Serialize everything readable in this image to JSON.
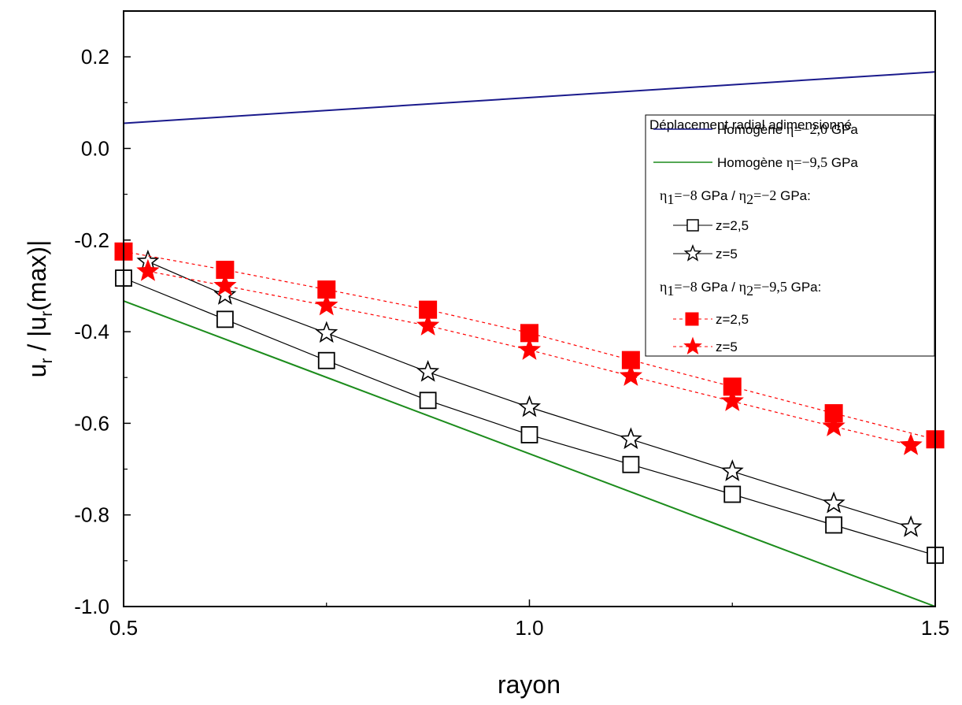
{
  "chart_data": {
    "type": "line",
    "xlabel": "rayon",
    "ylabel": {
      "base": "u",
      "sub": "r",
      "mid": " / |u",
      "sub2": "r",
      "tail": "(max)|"
    },
    "xlim": [
      0.5,
      1.5
    ],
    "ylim": [
      -1.0,
      0.3
    ],
    "xticks": [
      0.5,
      1.0,
      1.5
    ],
    "xtick_labels": [
      "0.5",
      "1.0",
      "1.5"
    ],
    "yticks": [
      0.2,
      0.0,
      -0.2,
      -0.4,
      -0.6,
      -0.8,
      -1.0
    ],
    "ytick_labels": [
      "0.2",
      "0.0",
      "-0.2",
      "-0.4",
      "-0.6",
      "-0.8",
      "-1.0"
    ],
    "grid": false,
    "legend": {
      "position": "right",
      "title": "Déplacement radial adimensionné",
      "group1_header": {
        "e1": "η",
        "s1": "1",
        "v1": "=−8",
        "u1": " GPa / ",
        "e2": "η",
        "s2": "2",
        "v2": "=−2",
        "u2": " GPa:"
      },
      "group2_header": {
        "e1": "η",
        "s1": "1",
        "v1": "=−8",
        "u1": " GPa / ",
        "e2": "η",
        "s2": "2",
        "v2": "=−9,5",
        "u2": " GPa:"
      }
    },
    "series": [
      {
        "name": "Homogène",
        "name_param": "η=−2,0",
        "name_unit": " GPa",
        "style": "line",
        "color": "#1a1a8c",
        "dash": "",
        "marker": "none",
        "x": [
          0.5,
          1.5
        ],
        "y": [
          0.055,
          0.167
        ]
      },
      {
        "name": "Homogène",
        "name_param": "η=−9,5",
        "name_unit": " GPa",
        "style": "line",
        "color": "#1c8c1c",
        "dash": "",
        "marker": "none",
        "x": [
          0.5,
          1.5
        ],
        "y": [
          -0.333,
          -1.0
        ]
      },
      {
        "name": "z=2,5",
        "group": 1,
        "style": "line+marker",
        "color": "#000000",
        "dash": "",
        "marker": "open-square",
        "x": [
          0.5,
          0.625,
          0.75,
          0.875,
          1.0,
          1.125,
          1.25,
          1.375,
          1.5
        ],
        "y": [
          -0.283,
          -0.373,
          -0.463,
          -0.55,
          -0.625,
          -0.69,
          -0.755,
          -0.822,
          -0.888
        ]
      },
      {
        "name": "z=5",
        "group": 1,
        "style": "line+marker",
        "color": "#000000",
        "dash": "",
        "marker": "open-star",
        "x": [
          0.53,
          0.625,
          0.75,
          0.875,
          1.0,
          1.125,
          1.25,
          1.375,
          1.47
        ],
        "y": [
          -0.247,
          -0.32,
          -0.403,
          -0.488,
          -0.565,
          -0.635,
          -0.705,
          -0.775,
          -0.827
        ]
      },
      {
        "name": "z=2,5",
        "group": 2,
        "style": "line+marker",
        "color": "#ff0000",
        "dash": "4,4",
        "marker": "filled-square",
        "x": [
          0.5,
          0.625,
          0.75,
          0.875,
          1.0,
          1.125,
          1.25,
          1.375,
          1.5
        ],
        "y": [
          -0.225,
          -0.265,
          -0.308,
          -0.352,
          -0.403,
          -0.462,
          -0.52,
          -0.578,
          -0.635
        ]
      },
      {
        "name": "z=5",
        "group": 2,
        "style": "line+marker",
        "color": "#ff0000",
        "dash": "4,4",
        "marker": "filled-star",
        "x": [
          0.53,
          0.625,
          0.75,
          0.875,
          1.0,
          1.125,
          1.25,
          1.375,
          1.47
        ],
        "y": [
          -0.268,
          -0.3,
          -0.343,
          -0.387,
          -0.44,
          -0.497,
          -0.552,
          -0.607,
          -0.648
        ]
      }
    ]
  }
}
